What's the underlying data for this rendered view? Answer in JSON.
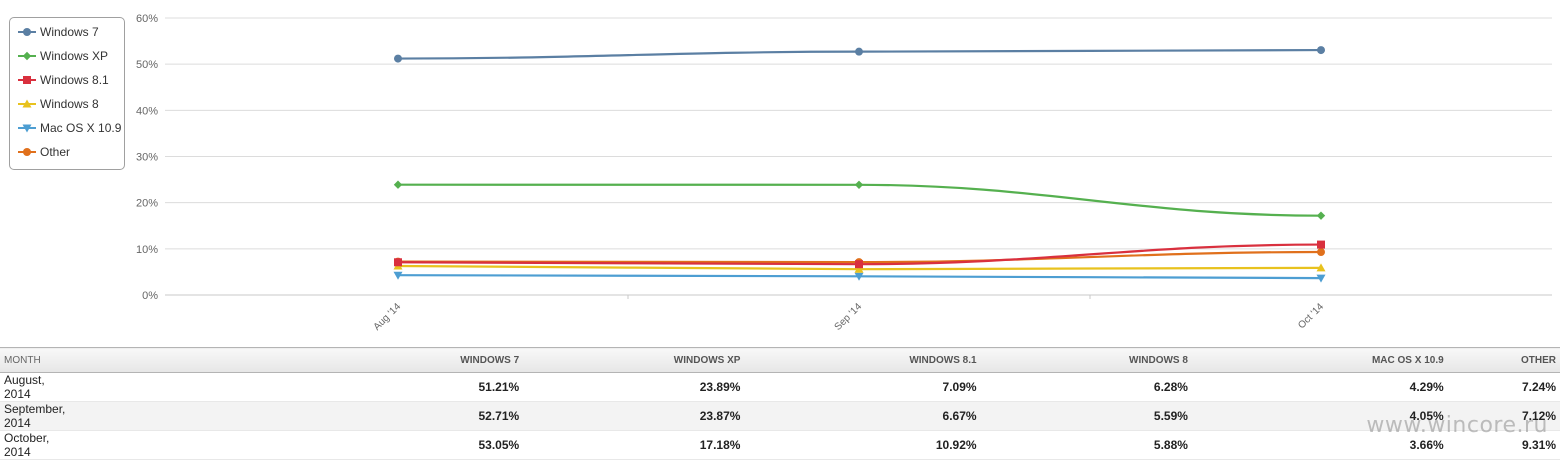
{
  "chart_data": {
    "type": "line",
    "categories": [
      "Aug '14",
      "Sep '14",
      "Oct '14"
    ],
    "series": [
      {
        "name": "Windows 7",
        "color": "#5b7fa3",
        "marker": "circle",
        "values": [
          51.21,
          52.71,
          53.05
        ]
      },
      {
        "name": "Windows XP",
        "color": "#55b04f",
        "marker": "diamond",
        "values": [
          23.89,
          23.87,
          17.18
        ]
      },
      {
        "name": "Windows 8.1",
        "color": "#d9303e",
        "marker": "square",
        "values": [
          7.09,
          6.67,
          10.92
        ]
      },
      {
        "name": "Windows 8",
        "color": "#e8c21e",
        "marker": "triangle",
        "values": [
          6.28,
          5.59,
          5.88
        ]
      },
      {
        "name": "Mac OS X 10.9",
        "color": "#4d9ed2",
        "marker": "triangle-down",
        "values": [
          4.29,
          4.05,
          3.66
        ]
      },
      {
        "name": "Other",
        "color": "#e0701c",
        "marker": "circle",
        "values": [
          7.24,
          7.12,
          9.31
        ]
      }
    ],
    "ylim": [
      0,
      60
    ],
    "yticks": [
      "0%",
      "10%",
      "20%",
      "30%",
      "40%",
      "50%",
      "60%"
    ],
    "grid": true,
    "legend_position": "top-left"
  },
  "table": {
    "headers": [
      "MONTH",
      "WINDOWS 7",
      "WINDOWS XP",
      "WINDOWS 8.1",
      "WINDOWS 8",
      "MAC OS X 10.9",
      "OTHER"
    ],
    "rows": [
      [
        "August, 2014",
        "51.21%",
        "23.89%",
        "7.09%",
        "6.28%",
        "4.29%",
        "7.24%"
      ],
      [
        "September, 2014",
        "52.71%",
        "23.87%",
        "6.67%",
        "5.59%",
        "4.05%",
        "7.12%"
      ],
      [
        "October, 2014",
        "53.05%",
        "17.18%",
        "10.92%",
        "5.88%",
        "3.66%",
        "9.31%"
      ]
    ]
  },
  "watermark": "www.wincore.ru"
}
